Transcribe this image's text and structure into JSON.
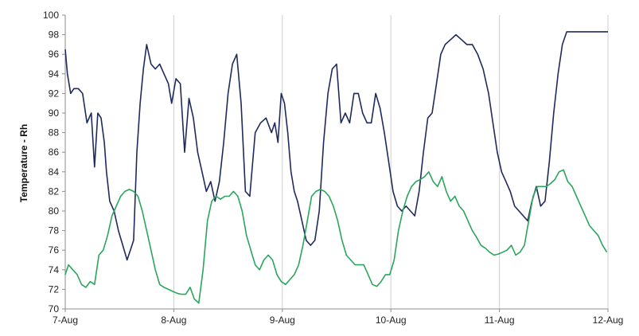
{
  "chart_data": {
    "type": "line",
    "title": "",
    "xlabel": "",
    "ylabel": "Temperature - Rh",
    "ylim": [
      70,
      100
    ],
    "yticks": [
      70,
      72,
      74,
      76,
      78,
      80,
      82,
      84,
      86,
      88,
      90,
      92,
      94,
      96,
      98,
      100
    ],
    "xlim": [
      0,
      5
    ],
    "xtick_values": [
      0,
      1,
      2,
      3,
      4,
      5
    ],
    "xtick_labels": [
      "7-Aug",
      "8-Aug",
      "9-Aug",
      "10-Aug",
      "11-Aug",
      "12-Aug"
    ],
    "grid": {
      "vertical": true,
      "horizontal": false
    },
    "legend": "none",
    "series": [
      {
        "color": "#1f2a5c",
        "x": [
          0.0,
          0.02,
          0.05,
          0.08,
          0.12,
          0.16,
          0.2,
          0.24,
          0.27,
          0.3,
          0.33,
          0.36,
          0.38,
          0.41,
          0.45,
          0.49,
          0.53,
          0.57,
          0.6,
          0.63,
          0.66,
          0.69,
          0.72,
          0.75,
          0.79,
          0.83,
          0.87,
          0.91,
          0.95,
          0.98,
          1.02,
          1.06,
          1.1,
          1.14,
          1.18,
          1.22,
          1.26,
          1.3,
          1.34,
          1.38,
          1.42,
          1.46,
          1.5,
          1.54,
          1.58,
          1.62,
          1.66,
          1.7,
          1.75,
          1.8,
          1.85,
          1.9,
          1.93,
          1.96,
          1.99,
          2.02,
          2.05,
          2.08,
          2.11,
          2.14,
          2.18,
          2.22,
          2.26,
          2.3,
          2.34,
          2.38,
          2.42,
          2.46,
          2.5,
          2.54,
          2.58,
          2.62,
          2.66,
          2.7,
          2.74,
          2.78,
          2.82,
          2.86,
          2.9,
          2.94,
          2.98,
          3.02,
          3.06,
          3.1,
          3.14,
          3.18,
          3.22,
          3.26,
          3.3,
          3.34,
          3.38,
          3.42,
          3.46,
          3.5,
          3.55,
          3.6,
          3.65,
          3.7,
          3.75,
          3.8,
          3.85,
          3.9,
          3.94,
          3.98,
          4.02,
          4.06,
          4.1,
          4.14,
          4.18,
          4.22,
          4.26,
          4.3,
          4.34,
          4.38,
          4.42,
          4.46,
          4.5,
          4.54,
          4.58,
          4.62,
          4.66,
          4.7,
          4.74,
          4.78,
          4.82,
          4.86,
          4.9,
          4.94,
          4.97,
          5.0
        ],
        "y": [
          96.5,
          94,
          92,
          92.5,
          92.5,
          92,
          89,
          90,
          84.5,
          90,
          89.5,
          87,
          84,
          81,
          80,
          78,
          76.5,
          75,
          76,
          77,
          86,
          91,
          94.5,
          97,
          95,
          94.5,
          95,
          94,
          93,
          91,
          93.5,
          93,
          86,
          91.5,
          89.5,
          86,
          84,
          82,
          83,
          81,
          83,
          87,
          92,
          95,
          96,
          91,
          82,
          81.5,
          88,
          89,
          89.5,
          88,
          89,
          87,
          92,
          91,
          88,
          84,
          82,
          81,
          79,
          77,
          76.5,
          77,
          80,
          87,
          92,
          94.5,
          95,
          89,
          90,
          89,
          92,
          92,
          90,
          89,
          89,
          92,
          90.5,
          88,
          85,
          82,
          80.5,
          80,
          80.5,
          80,
          79.5,
          82,
          86,
          89.5,
          90,
          93,
          96,
          97,
          97.5,
          98,
          97.5,
          97,
          97,
          96,
          94.5,
          92,
          89,
          86,
          84,
          83,
          82,
          80.5,
          80,
          79.5,
          79,
          81,
          82.5,
          80.5,
          81,
          85,
          90,
          94,
          97,
          98.3,
          98.3,
          98.3,
          98.3,
          98.3,
          98.3,
          98.3,
          98.3,
          98.3,
          98.3,
          98.3
        ]
      },
      {
        "color": "#2aa65c",
        "x": [
          0.0,
          0.03,
          0.07,
          0.11,
          0.15,
          0.19,
          0.23,
          0.27,
          0.31,
          0.35,
          0.39,
          0.43,
          0.47,
          0.51,
          0.55,
          0.59,
          0.63,
          0.67,
          0.71,
          0.75,
          0.79,
          0.83,
          0.87,
          0.91,
          0.95,
          0.99,
          1.03,
          1.07,
          1.11,
          1.15,
          1.19,
          1.23,
          1.27,
          1.31,
          1.35,
          1.39,
          1.43,
          1.47,
          1.51,
          1.55,
          1.59,
          1.63,
          1.67,
          1.71,
          1.75,
          1.79,
          1.83,
          1.87,
          1.91,
          1.95,
          1.99,
          2.03,
          2.07,
          2.11,
          2.15,
          2.19,
          2.23,
          2.27,
          2.31,
          2.35,
          2.39,
          2.43,
          2.47,
          2.51,
          2.55,
          2.59,
          2.63,
          2.67,
          2.71,
          2.75,
          2.79,
          2.83,
          2.87,
          2.91,
          2.95,
          2.99,
          3.03,
          3.07,
          3.11,
          3.15,
          3.19,
          3.23,
          3.27,
          3.31,
          3.35,
          3.39,
          3.43,
          3.47,
          3.51,
          3.55,
          3.59,
          3.63,
          3.67,
          3.71,
          3.75,
          3.79,
          3.83,
          3.87,
          3.91,
          3.95,
          3.99,
          4.03,
          4.07,
          4.11,
          4.15,
          4.19,
          4.23,
          4.27,
          4.31,
          4.35,
          4.39,
          4.43,
          4.47,
          4.51,
          4.55,
          4.59,
          4.63,
          4.67,
          4.71,
          4.75,
          4.79,
          4.83,
          4.87,
          4.91,
          4.95,
          4.99
        ],
        "y": [
          73.5,
          74.5,
          74,
          73.5,
          72.5,
          72.2,
          72.8,
          72.5,
          75.5,
          76,
          77.5,
          79.5,
          80.5,
          81.5,
          82,
          82.2,
          82,
          81.5,
          80,
          78,
          76,
          74,
          72.5,
          72.2,
          72,
          71.8,
          71.6,
          71.5,
          71.5,
          72.2,
          71,
          70.6,
          74,
          79,
          81,
          81.5,
          81.2,
          81.5,
          81.5,
          82,
          81.5,
          80,
          77.5,
          76,
          74.5,
          74,
          75,
          75.5,
          75,
          73.5,
          72.8,
          72.5,
          73,
          73.5,
          74.5,
          76.5,
          79,
          81.5,
          82,
          82.2,
          82,
          81.5,
          80.5,
          79,
          77,
          75.5,
          75,
          74.5,
          74.5,
          74.5,
          73.5,
          72.5,
          72.3,
          72.8,
          73.5,
          73.5,
          75,
          78,
          80,
          81.5,
          82.5,
          83,
          83.2,
          83.5,
          84,
          83,
          82.5,
          83.5,
          82,
          81,
          81.5,
          80.5,
          80,
          79,
          78,
          77.3,
          76.5,
          76.2,
          75.8,
          75.5,
          75.6,
          75.8,
          76,
          76.5,
          75.5,
          75.8,
          76.5,
          79,
          81.5,
          82.5,
          82.5,
          82.5,
          82.8,
          83.2,
          84,
          84.2,
          83,
          82.5,
          81.5,
          80.5,
          79.5,
          78.5,
          78,
          77.5,
          76.5,
          75.8
        ]
      }
    ]
  }
}
